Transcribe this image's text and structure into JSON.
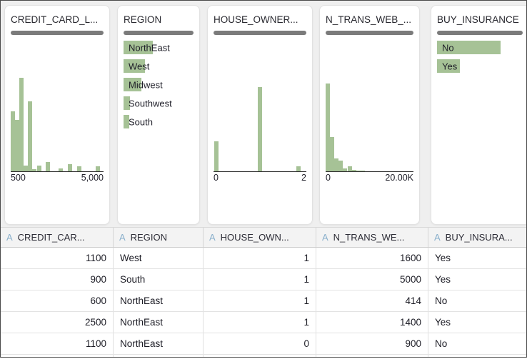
{
  "colors": {
    "bar_green": "#a6c296",
    "quality_gray": "#7b7b7b",
    "type_icon_blue": "#8ab0cc",
    "frame_border": "#4a4a4a",
    "cards_background": "#efefef"
  },
  "cards": [
    {
      "title": "CREDIT_CARD_L..."
    },
    {
      "title": "REGION"
    },
    {
      "title": "HOUSE_OWNER..."
    },
    {
      "title": "N_TRANS_WEB_..."
    },
    {
      "title": "BUY_INSURANCE"
    }
  ],
  "chart_data": [
    {
      "type": "bar",
      "variant": "histogram",
      "column": "CREDIT_CARD_L...",
      "x_ticks": [
        "500",
        "5,000"
      ],
      "max_h": 131,
      "bars": [
        {
          "pos": 0.0,
          "h": 0.64
        },
        {
          "pos": 0.046,
          "h": 0.55
        },
        {
          "pos": 0.099,
          "h": 1.0
        },
        {
          "pos": 0.145,
          "h": 0.06
        },
        {
          "pos": 0.191,
          "h": 0.75
        },
        {
          "pos": 0.244,
          "h": 0.02
        },
        {
          "pos": 0.298,
          "h": 0.06
        },
        {
          "pos": 0.397,
          "h": 0.1
        },
        {
          "pos": 0.542,
          "h": 0.03
        },
        {
          "pos": 0.649,
          "h": 0.08
        },
        {
          "pos": 0.748,
          "h": 0.05
        },
        {
          "pos": 0.962,
          "h": 0.05
        }
      ]
    },
    {
      "type": "bar",
      "variant": "category-rows",
      "column": "REGION",
      "categories": [
        {
          "label": "NorthEast",
          "w": 0.42
        },
        {
          "label": "West",
          "w": 0.31
        },
        {
          "label": "Midwest",
          "w": 0.26
        },
        {
          "label": "Southwest",
          "w": 0.09
        },
        {
          "label": "South",
          "w": 0.08
        }
      ]
    },
    {
      "type": "bar",
      "variant": "histogram",
      "column": "HOUSE_OWNER...",
      "x_ticks": [
        "0",
        "2"
      ],
      "max_h": 118,
      "bars": [
        {
          "pos": 0.007,
          "h": 0.36
        },
        {
          "pos": 0.5,
          "h": 1.0
        },
        {
          "pos": 0.935,
          "h": 0.06
        }
      ]
    },
    {
      "type": "bar",
      "variant": "histogram",
      "column": "N_TRANS_WEB_...",
      "x_ticks": [
        "0",
        "20.00K"
      ],
      "max_h": 123,
      "bars": [
        {
          "pos": 0.0,
          "h": 1.0
        },
        {
          "pos": 0.052,
          "h": 0.39
        },
        {
          "pos": 0.104,
          "h": 0.15
        },
        {
          "pos": 0.157,
          "h": 0.12
        },
        {
          "pos": 0.209,
          "h": 0.035
        },
        {
          "pos": 0.261,
          "h": 0.06
        },
        {
          "pos": 0.313,
          "h": 0.015
        },
        {
          "pos": 0.366,
          "h": 0.012
        },
        {
          "pos": 0.418,
          "h": 0.01
        }
      ]
    },
    {
      "type": "bar",
      "variant": "category-rows",
      "column": "BUY_INSURANCE",
      "categories": [
        {
          "label": "No",
          "w": 0.74
        },
        {
          "label": "Yes",
          "w": 0.27
        }
      ]
    }
  ],
  "table": {
    "columns": [
      {
        "label": "CREDIT_CAR...",
        "icon": "A",
        "align": "right"
      },
      {
        "label": "REGION",
        "icon": "A",
        "align": "left"
      },
      {
        "label": "HOUSE_OWN...",
        "icon": "A",
        "align": "right"
      },
      {
        "label": "N_TRANS_WE...",
        "icon": "A",
        "align": "right"
      },
      {
        "label": "BUY_INSURA...",
        "icon": "A",
        "align": "left"
      }
    ],
    "rows": [
      [
        "1100",
        "West",
        "1",
        "1600",
        "Yes"
      ],
      [
        "900",
        "South",
        "1",
        "5000",
        "Yes"
      ],
      [
        "600",
        "NorthEast",
        "1",
        "414",
        "No"
      ],
      [
        "2500",
        "NorthEast",
        "1",
        "1400",
        "Yes"
      ],
      [
        "1100",
        "NorthEast",
        "0",
        "900",
        "No"
      ]
    ]
  }
}
